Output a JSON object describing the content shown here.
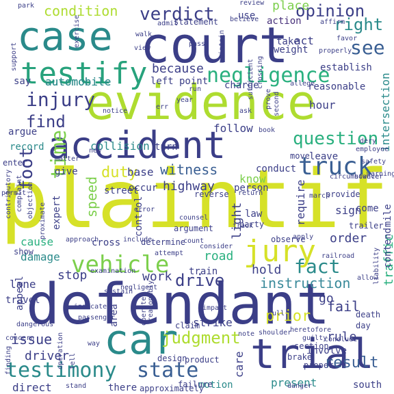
{
  "palette": {
    "navy": "#3b3e87",
    "purple": "#47307a",
    "blue": "#3a5f93",
    "teal": "#2a8a8a",
    "green": "#27a27c",
    "lime": "#7ccf4c",
    "yellow": "#d6e128",
    "darkgreen": "#1f7b83"
  },
  "words": [
    {
      "text": "plaintiff",
      "color": "#d6e128"
    },
    {
      "text": "defendant",
      "color": "#3b3e87"
    },
    {
      "text": "evidence",
      "color": "#aedc30"
    },
    {
      "text": "court",
      "color": "#3b3e87"
    },
    {
      "text": "case",
      "color": "#2a8a8a"
    },
    {
      "text": "accident",
      "color": "#3b3e87"
    },
    {
      "text": "car",
      "color": "#2a8a8a"
    },
    {
      "text": "trial",
      "color": "#3b3e87"
    },
    {
      "text": "testify",
      "color": "#27a27c"
    },
    {
      "text": "jury",
      "color": "#d6e128"
    },
    {
      "text": "negligence",
      "color": "#2ab07f"
    },
    {
      "text": "truck",
      "color": "#3a5f93"
    },
    {
      "text": "vehicle",
      "color": "#7ccf4c"
    },
    {
      "text": "testimony",
      "color": "#2a8a8a"
    },
    {
      "text": "state",
      "color": "#3a5f93"
    },
    {
      "text": "verdict",
      "color": "#3b3e87"
    },
    {
      "text": "injury",
      "color": "#3b3e87"
    },
    {
      "text": "question",
      "color": "#2ab07f"
    },
    {
      "text": "fact",
      "color": "#2a8a8a"
    },
    {
      "text": "drive",
      "color": "#3b3e87"
    },
    {
      "text": "judgment",
      "color": "#aedc30"
    },
    {
      "text": "condition",
      "color": "#aedc30"
    },
    {
      "text": "opinion",
      "color": "#3b3e87"
    },
    {
      "text": "see",
      "color": "#3a5f93"
    },
    {
      "text": "right",
      "color": "#2a8a8a"
    },
    {
      "text": "instruction",
      "color": "#3a8a9a"
    },
    {
      "text": "because",
      "color": "#3b3e87"
    },
    {
      "text": "witness",
      "color": "#3a5f93"
    },
    {
      "text": "time",
      "color": "#7ccf4c"
    },
    {
      "text": "find",
      "color": "#3b3e87"
    },
    {
      "text": "foot",
      "color": "#3b3e87"
    },
    {
      "text": "duty",
      "color": "#d6e128"
    },
    {
      "text": "automobile",
      "color": "#2a8a8a"
    },
    {
      "text": "place",
      "color": "#7ccf4c"
    },
    {
      "text": "action",
      "color": "#47307a"
    },
    {
      "text": "use",
      "color": "#3b3e87"
    },
    {
      "text": "act",
      "color": "#3b3e87"
    },
    {
      "text": "highway",
      "color": "#3b3e87"
    },
    {
      "text": "speed",
      "color": "#7ccf4c"
    },
    {
      "text": "cause",
      "color": "#2ab07f"
    },
    {
      "text": "damage",
      "color": "#2a8a8a"
    },
    {
      "text": "stop",
      "color": "#3b3e87"
    },
    {
      "text": "work",
      "color": "#3b3e87"
    },
    {
      "text": "road",
      "color": "#2ab07f"
    },
    {
      "text": "light",
      "color": "#3b3e87"
    },
    {
      "text": "hold",
      "color": "#3b3e87"
    },
    {
      "text": "rule",
      "color": "#3b3e87"
    },
    {
      "text": "issue",
      "color": "#3b3e87"
    },
    {
      "text": "driver",
      "color": "#3b3e87"
    },
    {
      "text": "prior",
      "color": "#d6e128"
    },
    {
      "text": "care",
      "color": "#3b3e87"
    },
    {
      "text": "result",
      "color": "#3a5f93"
    },
    {
      "text": "present",
      "color": "#2a8a8a"
    },
    {
      "text": "motion",
      "color": "#2a8a8a"
    },
    {
      "text": "fail",
      "color": "#3b3e87"
    },
    {
      "text": "order",
      "color": "#3b3e87"
    },
    {
      "text": "traffic",
      "color": "#2ab07f"
    },
    {
      "text": "intersection",
      "color": "#2a8a8a"
    },
    {
      "text": "hour",
      "color": "#3b3e87"
    },
    {
      "text": "leave",
      "color": "#3b3e87"
    },
    {
      "text": "follow",
      "color": "#3b3e87"
    },
    {
      "text": "collision",
      "color": "#2a8a8a"
    },
    {
      "text": "record",
      "color": "#2a8a8a"
    },
    {
      "text": "argue",
      "color": "#3b3e87"
    },
    {
      "text": "say",
      "color": "#3b3e87"
    },
    {
      "text": "left",
      "color": "#3b3e87"
    },
    {
      "text": "point",
      "color": "#3b3e87"
    },
    {
      "text": "turn",
      "color": "#3b3e87"
    },
    {
      "text": "base",
      "color": "#3b3e87"
    },
    {
      "text": "occur",
      "color": "#3b3e87"
    },
    {
      "text": "give",
      "color": "#3b3e87"
    },
    {
      "text": "street",
      "color": "#3b3e87"
    },
    {
      "text": "conduct",
      "color": "#3b3e87"
    },
    {
      "text": "know",
      "color": "#7ccf4c"
    },
    {
      "text": "person",
      "color": "#3b3e87"
    },
    {
      "text": "law",
      "color": "#3b3e87"
    },
    {
      "text": "require",
      "color": "#3b3e87"
    },
    {
      "text": "sign",
      "color": "#3b3e87"
    },
    {
      "text": "come",
      "color": "#3b3e87"
    },
    {
      "text": "lane",
      "color": "#3b3e87"
    },
    {
      "text": "travel",
      "color": "#3b3e87"
    },
    {
      "text": "cross",
      "color": "#3b3e87"
    },
    {
      "text": "control",
      "color": "#3b3e87"
    },
    {
      "text": "appeal",
      "color": "#3b3e87"
    },
    {
      "text": "expert",
      "color": "#3b3e87"
    },
    {
      "text": "reasonable",
      "color": "#3b3e87"
    },
    {
      "text": "establish",
      "color": "#3b3e87"
    },
    {
      "text": "take",
      "color": "#3b3e87"
    },
    {
      "text": "weight",
      "color": "#3b3e87"
    },
    {
      "text": "charge",
      "color": "#3b3e87"
    },
    {
      "text": "statement",
      "color": "#3b3e87"
    },
    {
      "text": "automobile",
      "color": "#2a8a8a"
    },
    {
      "text": "determine",
      "color": "#3b3e87"
    },
    {
      "text": "train",
      "color": "#3b3e87"
    },
    {
      "text": "go",
      "color": "#3b3e87"
    },
    {
      "text": "strike",
      "color": "#3b3e87"
    },
    {
      "text": "direct",
      "color": "#3b3e87"
    },
    {
      "text": "there",
      "color": "#3b3e87"
    },
    {
      "text": "south",
      "color": "#3b3e87"
    },
    {
      "text": "mile",
      "color": "#3b3e87"
    },
    {
      "text": "contend",
      "color": "#3b3e87"
    },
    {
      "text": "show",
      "color": "#3b3e87"
    },
    {
      "text": "party",
      "color": "#3b3e87"
    },
    {
      "text": "design",
      "color": "#3b3e87"
    },
    {
      "text": "product",
      "color": "#3b3e87"
    },
    {
      "text": "failure",
      "color": "#3b3e87"
    },
    {
      "text": "approximately",
      "color": "#3b3e87"
    },
    {
      "text": "area",
      "color": "#3b3e87"
    },
    {
      "text": "brake",
      "color": "#3b3e87"
    },
    {
      "text": "section",
      "color": "#3b3e87"
    },
    {
      "text": "involve",
      "color": "#3b3e87"
    },
    {
      "text": "proper",
      "color": "#3b3e87"
    },
    {
      "text": "death",
      "color": "#3b3e87"
    },
    {
      "text": "day",
      "color": "#3b3e87"
    },
    {
      "text": "conclude",
      "color": "#3b3e87"
    },
    {
      "text": "guilty",
      "color": "#3b3e87"
    },
    {
      "text": "claim",
      "color": "#3b3e87"
    },
    {
      "text": "examination",
      "color": "#3b3e87"
    },
    {
      "text": "indicate",
      "color": "#3b3e87"
    },
    {
      "text": "impact",
      "color": "#3b3e87"
    },
    {
      "text": "note",
      "color": "#3b3e87"
    },
    {
      "text": "allow",
      "color": "#3b3e87"
    },
    {
      "text": "liability",
      "color": "#3b3e87"
    },
    {
      "text": "apply",
      "color": "#3b3e87"
    },
    {
      "text": "provide",
      "color": "#3b3e87"
    },
    {
      "text": "observe",
      "color": "#3b3e87"
    },
    {
      "text": "however",
      "color": "#3b3e87"
    },
    {
      "text": "circumstance",
      "color": "#3b3e87"
    },
    {
      "text": "safety",
      "color": "#3b3e87"
    },
    {
      "text": "employee",
      "color": "#3b3e87"
    },
    {
      "text": "dery",
      "color": "#3b3e87"
    },
    {
      "text": "warning",
      "color": "#3b3e87"
    },
    {
      "text": "move",
      "color": "#3b3e87"
    },
    {
      "text": "trailer",
      "color": "#3b3e87"
    },
    {
      "text": "consider",
      "color": "#3b3e87"
    },
    {
      "text": "attempt",
      "color": "#3b3e87"
    },
    {
      "text": "argument",
      "color": "#3b3e87"
    },
    {
      "text": "counsel",
      "color": "#3b3e87"
    },
    {
      "text": "reverse",
      "color": "#3b3e87"
    },
    {
      "text": "include",
      "color": "#3b3e87"
    },
    {
      "text": "negligent",
      "color": "#3b3e87"
    },
    {
      "text": "sustain",
      "color": "#3b3e87"
    },
    {
      "text": "passenger",
      "color": "#3b3e87"
    },
    {
      "text": "operate",
      "color": "#3b3e87"
    },
    {
      "text": "dangerous",
      "color": "#3b3e87"
    },
    {
      "text": "permit",
      "color": "#3b3e87"
    },
    {
      "text": "enter",
      "color": "#3b3e87"
    },
    {
      "text": "support",
      "color": "#3b3e87"
    },
    {
      "text": "park",
      "color": "#3b3e87"
    },
    {
      "text": "review",
      "color": "#3b3e87"
    },
    {
      "text": "believe",
      "color": "#3b3e87"
    },
    {
      "text": "admit",
      "color": "#3b3e87"
    },
    {
      "text": "walk",
      "color": "#3b3e87"
    },
    {
      "text": "pass",
      "color": "#3b3e87"
    },
    {
      "text": "view",
      "color": "#3b3e87"
    },
    {
      "text": "properly",
      "color": "#3b3e87"
    },
    {
      "text": "favor",
      "color": "#3b3e87"
    },
    {
      "text": "affirm",
      "color": "#3b3e87"
    },
    {
      "text": "allege",
      "color": "#3b3e87"
    },
    {
      "text": "run",
      "color": "#3b3e87"
    },
    {
      "text": "year",
      "color": "#3b3e87"
    },
    {
      "text": "err",
      "color": "#3b3e87"
    },
    {
      "text": "notice",
      "color": "#3b3e87"
    },
    {
      "text": "ask",
      "color": "#3b3e87"
    },
    {
      "text": "new",
      "color": "#3b3e87"
    },
    {
      "text": "proximate",
      "color": "#3b3e87"
    },
    {
      "text": "crossing",
      "color": "#3b3e87"
    },
    {
      "text": "maintain",
      "color": "#3b3e87"
    },
    {
      "text": "exercise",
      "color": "#3b3e87"
    },
    {
      "text": "sufficient",
      "color": "#3b3e87"
    },
    {
      "text": "second",
      "color": "#3b3e87"
    },
    {
      "text": "prove",
      "color": "#3b3e87"
    },
    {
      "text": "return",
      "color": "#3b3e87"
    },
    {
      "text": "full",
      "color": "#3b3e87"
    },
    {
      "text": "shoulder",
      "color": "#3b3e87"
    },
    {
      "text": "track",
      "color": "#3b3e87"
    },
    {
      "text": "count",
      "color": "#3b3e87"
    },
    {
      "text": "approach",
      "color": "#3b3e87"
    },
    {
      "text": "error",
      "color": "#3b3e87"
    },
    {
      "text": "objection",
      "color": "#3b3e87"
    },
    {
      "text": "complaint",
      "color": "#3b3e87"
    },
    {
      "text": "contributory",
      "color": "#3b3e87"
    },
    {
      "text": "matter",
      "color": "#3b3e87"
    },
    {
      "text": "railroad",
      "color": "#3b3e87"
    },
    {
      "text": "operation",
      "color": "#3b3e87"
    },
    {
      "text": "concern",
      "color": "#3b3e87"
    },
    {
      "text": "tell",
      "color": "#3b3e87"
    },
    {
      "text": "way",
      "color": "#3b3e87"
    },
    {
      "text": "stand",
      "color": "#3b3e87"
    },
    {
      "text": "finding",
      "color": "#3b3e87"
    },
    {
      "text": "heretofore",
      "color": "#3b3e87"
    },
    {
      "text": "reasonably",
      "color": "#3b3e87"
    },
    {
      "text": "book",
      "color": "#3b3e87"
    },
    {
      "text": "march",
      "color": "#3b3e87"
    },
    {
      "text": "danger",
      "color": "#3b3e87"
    }
  ]
}
